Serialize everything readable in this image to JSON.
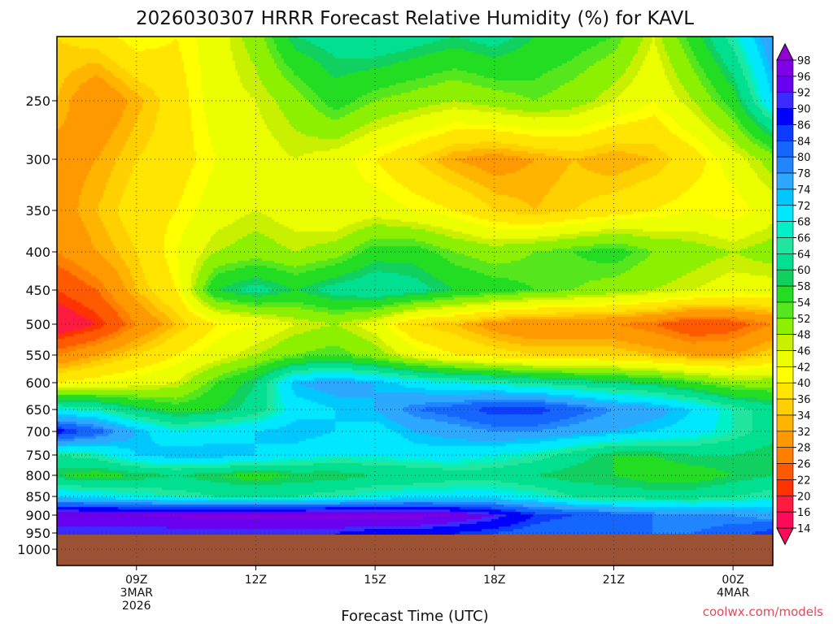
{
  "chart_data": {
    "type": "heatmap",
    "title": "2026030307 HRRR Forecast Relative Humidity (%) for KAVL",
    "xlabel": "Forecast Time (UTC)",
    "ylabel": "",
    "credit": "coolwx.com/models",
    "y_ticks": [
      250,
      300,
      350,
      400,
      450,
      500,
      550,
      600,
      650,
      700,
      750,
      800,
      850,
      900,
      950,
      1000
    ],
    "x_ticks": [
      {
        "hour": 9,
        "lines": [
          "09Z",
          "3MAR",
          "2026"
        ]
      },
      {
        "hour": 12,
        "lines": [
          "12Z"
        ]
      },
      {
        "hour": 15,
        "lines": [
          "15Z"
        ]
      },
      {
        "hour": 18,
        "lines": [
          "18Z"
        ]
      },
      {
        "hour": 21,
        "lines": [
          "21Z"
        ]
      },
      {
        "hour": 24,
        "lines": [
          "00Z",
          "4MAR"
        ]
      }
    ],
    "x_range_hours": [
      7,
      25
    ],
    "ground_pressure": 955,
    "grid": true,
    "colorbar": {
      "labels": [
        98,
        96,
        92,
        90,
        86,
        84,
        80,
        78,
        74,
        72,
        68,
        66,
        64,
        60,
        58,
        54,
        52,
        48,
        46,
        42,
        40,
        36,
        34,
        32,
        28,
        26,
        22,
        20,
        16,
        14
      ],
      "colors": [
        "#9400d3",
        "#7f00e6",
        "#6a00f0",
        "#3c2bff",
        "#0000ff",
        "#0b3cff",
        "#1565ff",
        "#2185ff",
        "#2da8ff",
        "#00c8ff",
        "#00e8ff",
        "#00f0c8",
        "#20e6a0",
        "#00e090",
        "#10d060",
        "#22dd22",
        "#55e61e",
        "#8cf000",
        "#c8f000",
        "#ebff00",
        "#ffff00",
        "#ffe500",
        "#ffd000",
        "#ffb400",
        "#ff9900",
        "#ff7f00",
        "#ff5a00",
        "#ff3300",
        "#ff1a40",
        "#ff0a5a"
      ]
    },
    "levels_hpa": [
      200,
      250,
      300,
      350,
      400,
      450,
      500,
      550,
      600,
      650,
      700,
      750,
      800,
      850,
      900,
      950
    ],
    "hours": [
      7,
      8,
      9,
      10,
      11,
      12,
      13,
      14,
      15,
      16,
      17,
      18,
      19,
      20,
      21,
      22,
      23,
      24,
      25
    ],
    "values": [
      [
        36,
        38,
        42,
        40,
        44,
        50,
        60,
        62,
        64,
        62,
        60,
        62,
        58,
        56,
        54,
        46,
        56,
        66,
        78
      ],
      [
        34,
        28,
        33,
        38,
        44,
        46,
        50,
        56,
        52,
        50,
        48,
        50,
        52,
        50,
        46,
        42,
        48,
        56,
        72
      ],
      [
        30,
        32,
        36,
        38,
        42,
        44,
        46,
        44,
        40,
        36,
        32,
        30,
        32,
        34,
        32,
        34,
        38,
        44,
        50
      ],
      [
        30,
        34,
        38,
        40,
        44,
        46,
        44,
        42,
        44,
        42,
        40,
        36,
        34,
        36,
        38,
        40,
        42,
        40,
        44
      ],
      [
        28,
        32,
        36,
        42,
        48,
        50,
        48,
        50,
        56,
        56,
        52,
        50,
        52,
        54,
        56,
        52,
        50,
        48,
        50
      ],
      [
        22,
        26,
        34,
        40,
        58,
        62,
        58,
        62,
        64,
        62,
        58,
        56,
        54,
        52,
        50,
        48,
        46,
        44,
        44
      ],
      [
        16,
        20,
        28,
        34,
        40,
        42,
        46,
        48,
        44,
        36,
        34,
        30,
        28,
        28,
        28,
        26,
        22,
        24,
        28
      ],
      [
        28,
        32,
        36,
        40,
        44,
        48,
        52,
        54,
        50,
        44,
        40,
        38,
        36,
        36,
        36,
        34,
        32,
        32,
        36
      ],
      [
        40,
        42,
        44,
        46,
        54,
        60,
        74,
        76,
        74,
        70,
        68,
        66,
        64,
        62,
        60,
        58,
        54,
        50,
        50
      ],
      [
        68,
        66,
        60,
        56,
        58,
        62,
        70,
        72,
        74,
        80,
        82,
        86,
        86,
        82,
        78,
        76,
        72,
        66,
        62
      ],
      [
        88,
        82,
        74,
        68,
        70,
        72,
        74,
        72,
        70,
        74,
        76,
        78,
        78,
        76,
        74,
        72,
        70,
        66,
        62
      ],
      [
        64,
        66,
        72,
        74,
        74,
        72,
        70,
        68,
        68,
        70,
        70,
        68,
        66,
        62,
        58,
        58,
        60,
        60,
        58
      ],
      [
        58,
        56,
        58,
        60,
        58,
        56,
        58,
        58,
        60,
        60,
        62,
        62,
        60,
        58,
        58,
        56,
        56,
        58,
        60
      ],
      [
        72,
        70,
        68,
        66,
        64,
        64,
        64,
        66,
        68,
        70,
        70,
        70,
        68,
        64,
        62,
        62,
        62,
        64,
        66
      ],
      [
        96,
        96,
        96,
        97,
        98,
        98,
        98,
        98,
        98,
        98,
        96,
        92,
        86,
        84,
        82,
        80,
        78,
        78,
        76
      ],
      [
        90,
        90,
        90,
        90,
        90,
        90,
        90,
        90,
        88,
        88,
        86,
        84,
        82,
        80,
        80,
        80,
        80,
        82,
        86
      ]
    ]
  }
}
